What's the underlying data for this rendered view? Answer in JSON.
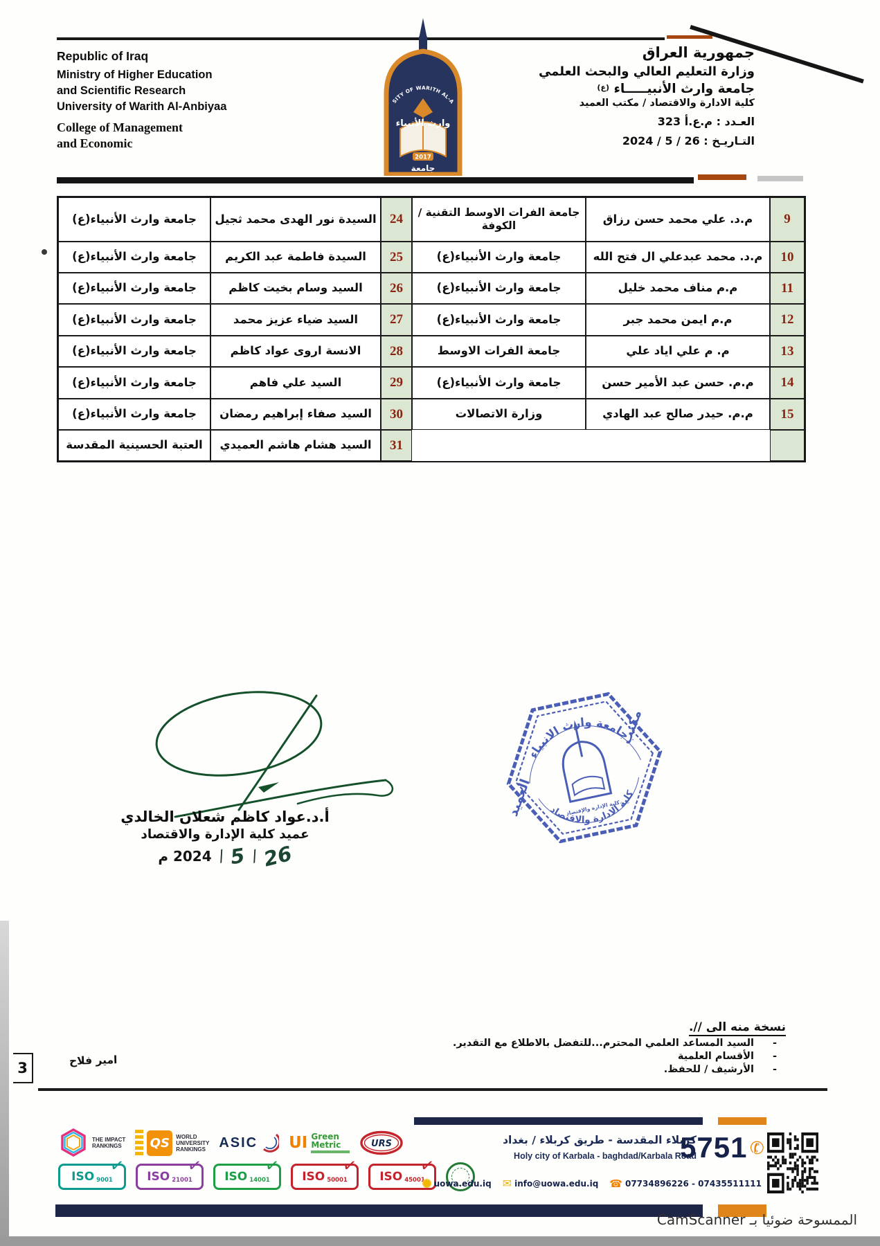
{
  "header": {
    "english": [
      "Republic of Iraq",
      "Ministry of Higher Education",
      "and Scientific Research",
      "University of Warith Al-Anbiyaa",
      "College of Management",
      "and Economic"
    ],
    "arabic": {
      "country": "جمهورية العراق",
      "ministry": "وزارة التعليم العالي والبحث العلمي",
      "university": "جامعة وارث الأنبيـــــاء",
      "honorific": "(ع)",
      "office": "كلية الادارة والاقتصاد / مكتب العميد",
      "ref_number": "العـدد : م.ع.أ 323",
      "date": "التـاريـخ : 26 / 5 / 2024"
    },
    "logo": {
      "arc_text": "UNIVERSITY OF WARITH AL-ANBIYAA",
      "calligraphy": "وارث الأنبياء",
      "word": "جامعة",
      "year": "2017"
    }
  },
  "margin_dot": "•",
  "table": {
    "rows": [
      {
        "l_org": "جامعة وارث الأنبياء(ع)",
        "l_name": "السيدة نور الهدى محمد ثجيل",
        "l_no": "24",
        "r_org": "جامعة الفرات الاوسط التقنية / الكوفة",
        "r_name": "م.د. علي محمد حسن رزاق",
        "r_no": "9"
      },
      {
        "l_org": "جامعة وارث الأنبياء(ع)",
        "l_name": "السيدة فاطمة عبد الكريم",
        "l_no": "25",
        "r_org": "جامعة وارث الأنبياء(ع)",
        "r_name": "م.د. محمد عبدعلي ال فتح الله",
        "r_no": "10"
      },
      {
        "l_org": "جامعة وارث الأنبياء(ع)",
        "l_name": "السيد وسام بخيت كاظم",
        "l_no": "26",
        "r_org": "جامعة وارث الأنبياء(ع)",
        "r_name": "م.م مناف محمد خليل",
        "r_no": "11"
      },
      {
        "l_org": "جامعة وارث الأنبياء(ع)",
        "l_name": "السيد ضياء عزيز محمد",
        "l_no": "27",
        "r_org": "جامعة وارث الأنبياء(ع)",
        "r_name": "م.م ايمن محمد جبر",
        "r_no": "12"
      },
      {
        "l_org": "جامعة وارث الأنبياء(ع)",
        "l_name": "الانسة اروى عواد كاظم",
        "l_no": "28",
        "r_org": "جامعة الفرات الاوسط",
        "r_name": "م. م علي اياد علي",
        "r_no": "13"
      },
      {
        "l_org": "جامعة وارث الأنبياء(ع)",
        "l_name": "السيد علي فاهم",
        "l_no": "29",
        "r_org": "جامعة وارث الأنبياء(ع)",
        "r_name": "م.م. حسن عبد الأمير حسن",
        "r_no": "14"
      },
      {
        "l_org": "جامعة وارث الأنبياء(ع)",
        "l_name": "السيد صفاء إبراهيم رمضان",
        "l_no": "30",
        "r_org": "وزارة الاتصالات",
        "r_name": "م.م. حيدر صالح عبد الهادي",
        "r_no": "15"
      },
      {
        "l_org": "العتبة الحسينية المقدسة",
        "l_name": "السيد هشام هاشم العميدي",
        "l_no": "31",
        "r_org": "",
        "r_name": "",
        "r_no": ""
      }
    ]
  },
  "signature": {
    "name": "أ.د.عواد كاظم شعلان الخالدي",
    "title": "عميد كلية الإدارة والاقتصاد",
    "day": "26",
    "month": "5",
    "slash": "/",
    "year": "2024 م"
  },
  "stamp": {
    "top": "جامعة وارث الانبياء",
    "bottom": "كلية الادارة والاقتصاد",
    "right_word": "مكتب",
    "left_word": "العميد",
    "center": "كلية الإدارة والإقتصاد"
  },
  "copies": {
    "heading": "نسخة منه الى //.",
    "dash": "-",
    "items": [
      "السيد المساعد العلمي المحترم...للتفضل بالاطلاع مع التقدير.",
      "الأقسام العلمية",
      "الأرشيف / للحفظ."
    ]
  },
  "annotations": {
    "page_number": "3",
    "handwritten_name": "امير فلاح",
    "camscanner": "الممسوحة ضوئيا بـ CamScanner"
  },
  "footer": {
    "rankings": {
      "impact_line1": "THE IMPACT",
      "impact_line2": "RANKINGS",
      "qs": "QS",
      "qs_lines": [
        "WORLD",
        "UNIVERSITY",
        "RANKINGS"
      ],
      "asic": "ASIC",
      "ui": "UI",
      "green": "Green",
      "metric": "Metric",
      "urs": "URS"
    },
    "iso_label": "ISO",
    "check": "✓",
    "iso_badges": [
      {
        "code": "9001",
        "color": "#0b9b8f"
      },
      {
        "code": "21001",
        "color": "#8a3f9e"
      },
      {
        "code": "14001",
        "color": "#1e9e46"
      },
      {
        "code": "50001",
        "color": "#c3242b"
      },
      {
        "code": "45001",
        "color": "#c3242b"
      }
    ],
    "address_ar": "كربلاء المقدسة - طريق كربلاء / بغداد",
    "address_en": "Holy city of Karbala - baghdad/Karbala Road",
    "phone_big": "5751",
    "website": "uowa.edu.iq",
    "email": "info@uowa.edu.iq",
    "phones": "07734896226 - 07435511111",
    "colors": {
      "navy": "#1d2646",
      "orange": "#df8519",
      "stamp_blue": "#3b51b0",
      "table_green": "#dbe7d2",
      "number_red": "#8a2412"
    }
  }
}
